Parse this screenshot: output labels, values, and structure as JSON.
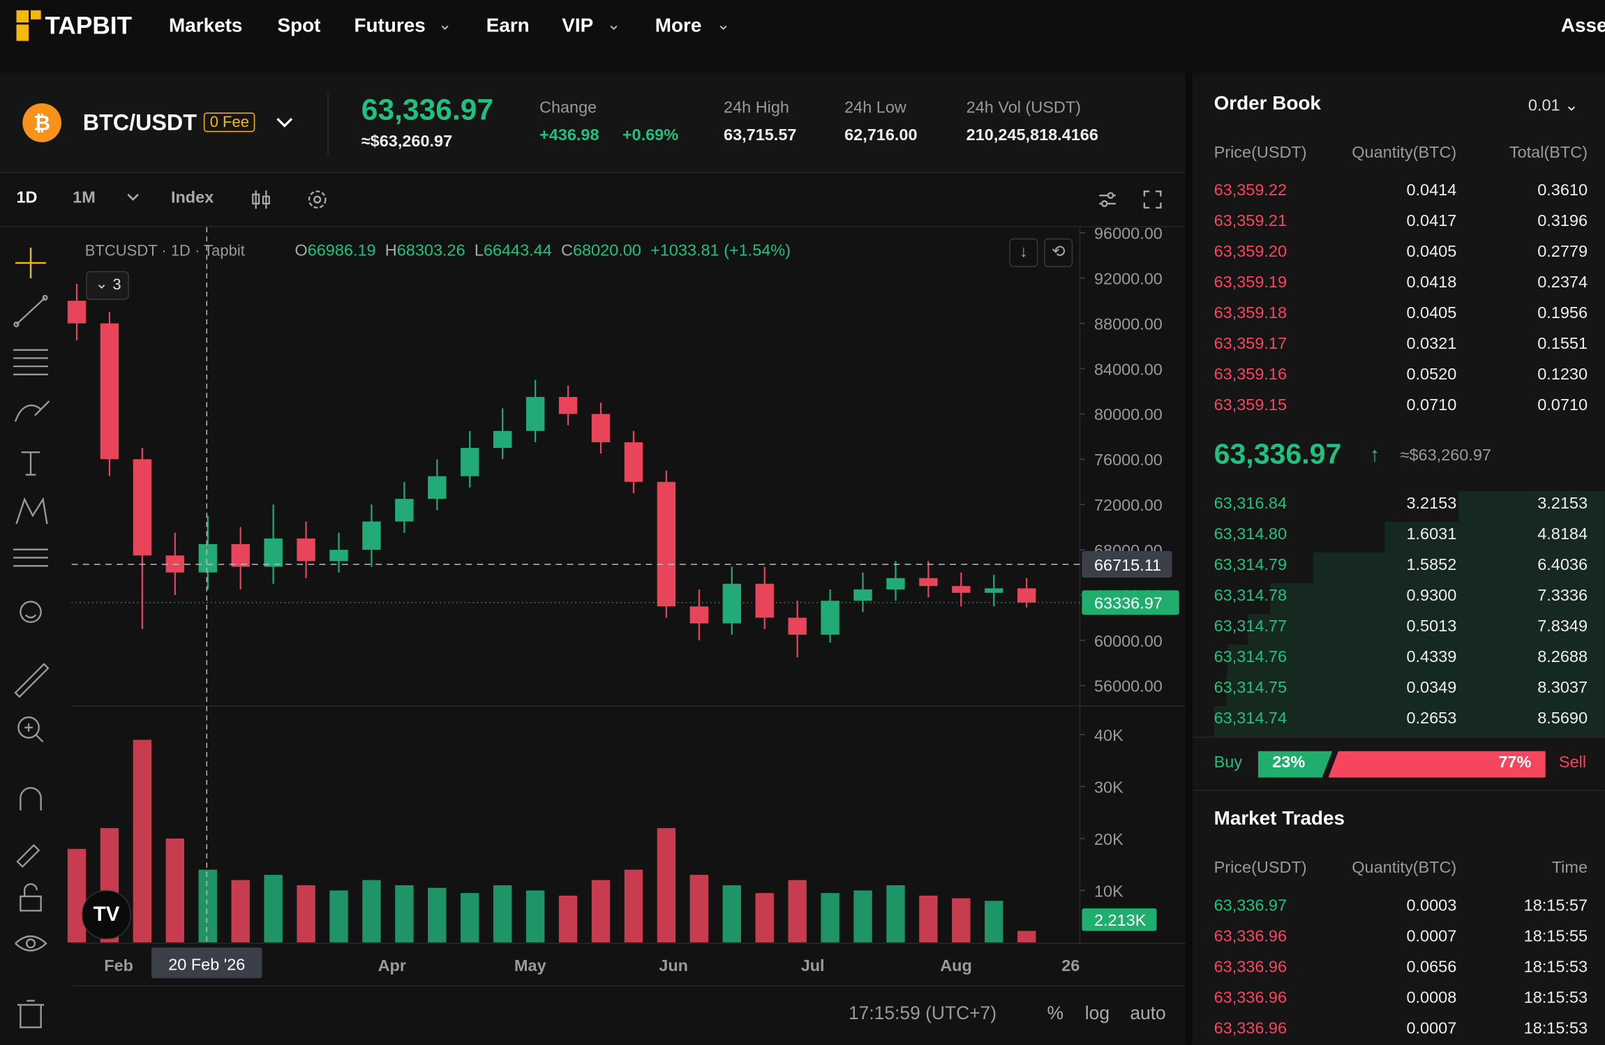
{
  "nav": {
    "logo": "TAPBIT",
    "items": [
      "Markets",
      "Spot",
      "Futures",
      "Earn",
      "VIP",
      "More"
    ],
    "right": "Asse"
  },
  "ticker": {
    "pair": "BTC/USDT",
    "fee": "0 Fee",
    "price": "63,336.97",
    "price_usd": "≈$63,260.97",
    "change": {
      "label": "Change",
      "value": "+436.98",
      "percent": "+0.69%"
    },
    "stats": [
      {
        "label": "24h High",
        "value": "63,715.57"
      },
      {
        "label": "24h Low",
        "value": "62,716.00"
      },
      {
        "label": "24h Vol (USDT)",
        "value": "210,245,818.4166"
      }
    ]
  },
  "toolbar": {
    "intervals": [
      "1D",
      "1M",
      "Index"
    ]
  },
  "legend": {
    "symbol": "BTCUSDT",
    "interval": "1D",
    "source": "Tapbit",
    "indicators": "3",
    "fields": [
      {
        "key": "O",
        "value": "66986.19"
      },
      {
        "key": "H",
        "value": "68303.26"
      },
      {
        "key": "L",
        "value": "66443.44"
      },
      {
        "key": "C",
        "value": "68020.00"
      }
    ],
    "change": "+1033.81 (+1.54%)"
  },
  "chart_data": {
    "type": "candlestick",
    "open": [
      90000,
      88000,
      76000,
      67500,
      66000,
      68500,
      66500,
      69000,
      67000,
      68000,
      70500,
      72500,
      74500,
      77000,
      78500,
      81500,
      80000,
      77500,
      74000,
      63000,
      61500,
      65000,
      62000,
      60500,
      63500,
      64500,
      65500,
      64800,
      64200,
      64600
    ],
    "high": [
      91500,
      89000,
      77000,
      69500,
      71000,
      70000,
      72000,
      70500,
      69500,
      72000,
      74000,
      76000,
      78500,
      80500,
      83000,
      82500,
      81000,
      78500,
      75000,
      64500,
      66500,
      66500,
      63500,
      64500,
      66000,
      67000,
      67000,
      66000,
      65800,
      65500
    ],
    "low": [
      86500,
      74500,
      61000,
      64000,
      64500,
      64500,
      65000,
      65500,
      66000,
      66500,
      69500,
      71500,
      73500,
      76000,
      77500,
      79000,
      76500,
      73000,
      62000,
      60000,
      60500,
      61000,
      58500,
      59800,
      62500,
      63500,
      63800,
      63000,
      63000,
      62900
    ],
    "close": [
      88000,
      76000,
      67500,
      66000,
      68500,
      66500,
      69000,
      67000,
      68000,
      70500,
      72500,
      74500,
      77000,
      78500,
      81500,
      80000,
      77500,
      74000,
      63000,
      61500,
      65000,
      62000,
      60500,
      63500,
      64500,
      65500,
      64800,
      64200,
      64600,
      63336.97
    ],
    "volume": [
      18000,
      22000,
      39000,
      20000,
      14000,
      12000,
      13000,
      11000,
      10000,
      12000,
      11000,
      10500,
      9500,
      11000,
      10000,
      9000,
      12000,
      14000,
      22000,
      13000,
      11000,
      9500,
      12000,
      9500,
      10000,
      11000,
      9000,
      8500,
      8000,
      2213
    ],
    "up_color": "#22ab76",
    "down_color": "#e8455b",
    "ylim": [
      54200,
      96500
    ],
    "yticks": [
      {
        "value": 96000,
        "label": "96000.00"
      },
      {
        "value": 92000,
        "label": "92000.00"
      },
      {
        "value": 88000,
        "label": "88000.00"
      },
      {
        "value": 84000,
        "label": "84000.00"
      },
      {
        "value": 80000,
        "label": "80000.00"
      },
      {
        "value": 76000,
        "label": "76000.00"
      },
      {
        "value": 72000,
        "label": "72000.00"
      },
      {
        "value": 68000,
        "label": "68000.00"
      },
      {
        "value": 64000,
        "label": "64000.00"
      },
      {
        "value": 60000,
        "label": "60000.00"
      },
      {
        "value": 56000,
        "label": "56000.00"
      }
    ],
    "vol_ylim": [
      0,
      45500
    ],
    "vol_yticks": [
      {
        "value": 40000,
        "label": "40K"
      },
      {
        "value": 30000,
        "label": "30K"
      },
      {
        "value": 20000,
        "label": "20K"
      },
      {
        "value": 10000,
        "label": "10K"
      }
    ],
    "last_price": 63336.97,
    "crosshair_price": 66715.11,
    "last_volume": {
      "value": 2213,
      "label": "2.213K"
    },
    "x_labels": [
      "Feb",
      "Apr",
      "May",
      "Jun",
      "Jul",
      "Aug",
      "26"
    ],
    "crosshair_date": "20 Feb '26"
  },
  "status": {
    "time": "17:15:59 (UTC+7)",
    "options": [
      "%",
      "log",
      "auto"
    ]
  },
  "order_book": {
    "title": "Order Book",
    "precision": "0.01",
    "headers": [
      "Price(USDT)",
      "Quantity(BTC)",
      "Total(BTC)"
    ],
    "asks": [
      [
        "63,359.22",
        "0.0414",
        "0.3610"
      ],
      [
        "63,359.21",
        "0.0417",
        "0.3196"
      ],
      [
        "63,359.20",
        "0.0405",
        "0.2779"
      ],
      [
        "63,359.19",
        "0.0418",
        "0.2374"
      ],
      [
        "63,359.18",
        "0.0405",
        "0.1956"
      ],
      [
        "63,359.17",
        "0.0321",
        "0.1551"
      ],
      [
        "63,359.16",
        "0.0520",
        "0.1230"
      ],
      [
        "63,359.15",
        "0.0710",
        "0.0710"
      ]
    ],
    "mid_price": "63,336.97",
    "mid_usd": "≈$63,260.97",
    "bids": [
      [
        "63,316.84",
        "3.2153",
        "3.2153"
      ],
      [
        "63,314.80",
        "1.6031",
        "4.8184"
      ],
      [
        "63,314.79",
        "1.5852",
        "6.4036"
      ],
      [
        "63,314.78",
        "0.9300",
        "7.3336"
      ],
      [
        "63,314.77",
        "0.5013",
        "7.8349"
      ],
      [
        "63,314.76",
        "0.4339",
        "8.2688"
      ],
      [
        "63,314.75",
        "0.0349",
        "8.3037"
      ],
      [
        "63,314.74",
        "0.2653",
        "8.5690"
      ]
    ],
    "buy_label": "Buy",
    "buy_pct": "23%",
    "sell_pct": "77%",
    "sell_label": "Sell"
  },
  "market_trades": {
    "title": "Market Trades",
    "headers": [
      "Price(USDT)",
      "Quantity(BTC)",
      "Time"
    ],
    "rows": [
      {
        "price": "63,336.97",
        "qty": "0.0003",
        "time": "18:15:57",
        "color": "#22c07e"
      },
      {
        "price": "63,336.96",
        "qty": "0.0007",
        "time": "18:15:55",
        "color": "#f6465d"
      },
      {
        "price": "63,336.96",
        "qty": "0.0656",
        "time": "18:15:53",
        "color": "#f6465d"
      },
      {
        "price": "63,336.96",
        "qty": "0.0008",
        "time": "18:15:53",
        "color": "#f6465d"
      },
      {
        "price": "63,336.96",
        "qty": "0.0007",
        "time": "18:15:53",
        "color": "#f6465d"
      }
    ]
  }
}
